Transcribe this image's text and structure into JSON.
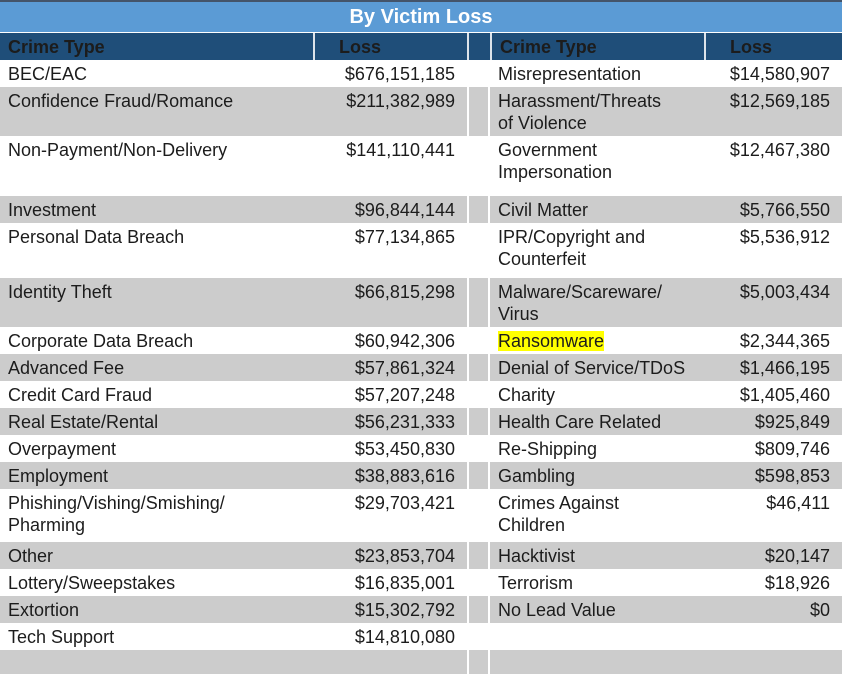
{
  "table": {
    "title": "By Victim Loss",
    "header": {
      "crime_type": "Crime Type",
      "loss": "Loss"
    },
    "rows": [
      {
        "shaded": false,
        "left_crime": "BEC/EAC",
        "left_loss": "$676,151,185",
        "right_crime": "Misrepresentation",
        "right_loss": "$14,580,907",
        "highlight": false
      },
      {
        "shaded": true,
        "left_crime": "Confidence Fraud/Romance",
        "left_loss": "$211,382,989",
        "right_crime": "Harassment/Threats\nof Violence",
        "right_loss": "$12,569,185",
        "highlight": false
      },
      {
        "shaded": false,
        "left_crime": "Non-Payment/Non-Delivery",
        "left_loss": "$141,110,441",
        "right_crime": "Government\nImpersonation",
        "right_loss": "$12,467,380",
        "highlight": false
      },
      {
        "shaded": true,
        "left_crime": "Investment",
        "left_loss": "$96,844,144",
        "right_crime": "Civil Matter",
        "right_loss": "$5,766,550",
        "highlight": false
      },
      {
        "shaded": false,
        "left_crime": "Personal Data Breach",
        "left_loss": "$77,134,865",
        "right_crime": "IPR/Copyright and\nCounterfeit",
        "right_loss": "$5,536,912",
        "highlight": false
      },
      {
        "shaded": true,
        "left_crime": "Identity Theft",
        "left_loss": "$66,815,298",
        "right_crime": "Malware/Scareware/\nVirus",
        "right_loss": "$5,003,434",
        "highlight": false
      },
      {
        "shaded": false,
        "left_crime": "Corporate Data Breach",
        "left_loss": "$60,942,306",
        "right_crime": "Ransomware",
        "right_loss": "$2,344,365",
        "highlight": true
      },
      {
        "shaded": true,
        "left_crime": "Advanced Fee",
        "left_loss": "$57,861,324",
        "right_crime": "Denial of Service/TDoS",
        "right_loss": "$1,466,195",
        "highlight": false
      },
      {
        "shaded": false,
        "left_crime": "Credit Card Fraud",
        "left_loss": "$57,207,248",
        "right_crime": "Charity",
        "right_loss": "$1,405,460",
        "highlight": false
      },
      {
        "shaded": true,
        "left_crime": "Real Estate/Rental",
        "left_loss": "$56,231,333",
        "right_crime": "Health Care Related",
        "right_loss": "$925,849",
        "highlight": false
      },
      {
        "shaded": false,
        "left_crime": "Overpayment",
        "left_loss": "$53,450,830",
        "right_crime": "Re-Shipping",
        "right_loss": "$809,746",
        "highlight": false
      },
      {
        "shaded": true,
        "left_crime": "Employment",
        "left_loss": "$38,883,616",
        "right_crime": "Gambling",
        "right_loss": "$598,853",
        "highlight": false
      },
      {
        "shaded": false,
        "left_crime": "Phishing/Vishing/Smishing/\nPharming",
        "left_loss": "$29,703,421",
        "right_crime": "Crimes Against\nChildren",
        "right_loss": "$46,411",
        "highlight": false
      },
      {
        "shaded": true,
        "left_crime": "Other",
        "left_loss": "$23,853,704",
        "right_crime": "Hacktivist",
        "right_loss": "$20,147",
        "highlight": false
      },
      {
        "shaded": false,
        "left_crime": "Lottery/Sweepstakes",
        "left_loss": "$16,835,001",
        "right_crime": "Terrorism",
        "right_loss": "$18,926",
        "highlight": false
      },
      {
        "shaded": true,
        "left_crime": "Extortion",
        "left_loss": "$15,302,792",
        "right_crime": "No Lead Value",
        "right_loss": "$0",
        "highlight": false
      },
      {
        "shaded": false,
        "left_crime": "Tech Support",
        "left_loss": "$14,810,080",
        "right_crime": "",
        "right_loss": "",
        "highlight": false
      },
      {
        "shaded": true,
        "left_crime": "",
        "left_loss": "",
        "right_crime": "",
        "right_loss": "",
        "highlight": false
      }
    ],
    "colors": {
      "title_bar": "#5B9BD5",
      "header": "#1F4E79",
      "stripe": "#CCCCCC",
      "highlight": "#FFFF00",
      "top_border": "#44546A"
    }
  }
}
